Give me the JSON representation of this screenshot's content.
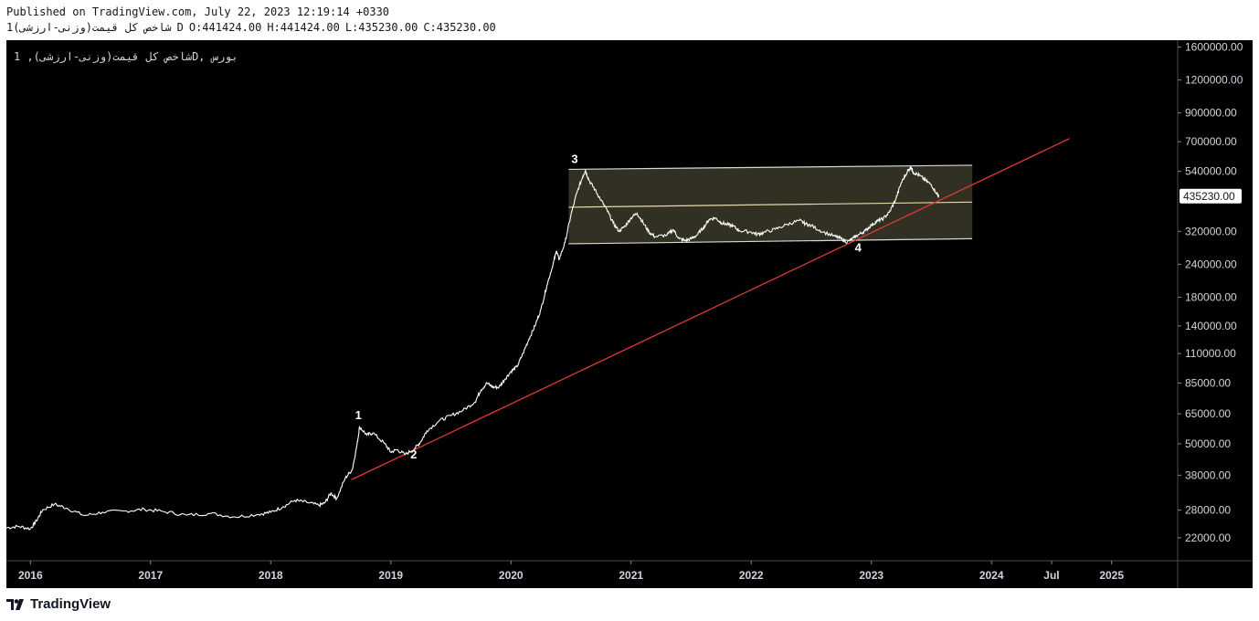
{
  "header": {
    "published": "Published on TradingView.com, July 22, 2023 12:19:14 +0330",
    "symbol": "شاخص کل قیمت(وزنی-ارزشی)",
    "interval": "1D",
    "ohlc": {
      "open": "O:441424.00",
      "high": "H:441424.00",
      "low": "L:435230.00",
      "close": "C:435230.00"
    }
  },
  "legend": {
    "text": "شاخص کل قیمت(وزنی-ارزشی), 1D, بورس"
  },
  "footer": {
    "brand": "TradingView"
  },
  "colors": {
    "background": "#000000",
    "price_line": "#ffffff",
    "trendline": "#e53935",
    "channel_fill": "#3a3829",
    "channel_border": "#d8d8d8",
    "channel_mid": "#e6d7a8",
    "axis_text": "#d1d4dc"
  },
  "chart_data": {
    "type": "line",
    "scale": "log",
    "ylim": [
      18000,
      1700000
    ],
    "xlim": [
      2015.8,
      2025.55
    ],
    "y_ticks": [
      {
        "value": 1600000,
        "label": "1600000.00"
      },
      {
        "value": 1200000,
        "label": "1200000.00"
      },
      {
        "value": 900000,
        "label": "900000.00"
      },
      {
        "value": 700000,
        "label": "700000.00"
      },
      {
        "value": 540000,
        "label": "540000.00"
      },
      {
        "value": 320000,
        "label": "320000.00"
      },
      {
        "value": 240000,
        "label": "240000.00"
      },
      {
        "value": 180000,
        "label": "180000.00"
      },
      {
        "value": 140000,
        "label": "140000.00"
      },
      {
        "value": 110000,
        "label": "110000.00"
      },
      {
        "value": 85000,
        "label": "85000.00"
      },
      {
        "value": 65000,
        "label": "65000.00"
      },
      {
        "value": 50000,
        "label": "50000.00"
      },
      {
        "value": 38000,
        "label": "38000.00"
      },
      {
        "value": 28000,
        "label": "28000.00"
      },
      {
        "value": 22000,
        "label": "22000.00"
      }
    ],
    "x_ticks": [
      {
        "value": 2016.0,
        "label": "2016"
      },
      {
        "value": 2017.0,
        "label": "2017"
      },
      {
        "value": 2018.0,
        "label": "2018"
      },
      {
        "value": 2019.0,
        "label": "2019"
      },
      {
        "value": 2020.0,
        "label": "2020"
      },
      {
        "value": 2021.0,
        "label": "2021"
      },
      {
        "value": 2022.0,
        "label": "2022"
      },
      {
        "value": 2023.0,
        "label": "2023"
      },
      {
        "value": 2024.0,
        "label": "2024"
      },
      {
        "value": 2024.5,
        "label": "Jul"
      },
      {
        "value": 2025.0,
        "label": "2025"
      }
    ],
    "last_price": {
      "value": 435230,
      "label": "435230.00"
    },
    "series": [
      {
        "points": [
          [
            2015.8,
            24000
          ],
          [
            2015.9,
            24300
          ],
          [
            2016.0,
            23800
          ],
          [
            2016.05,
            25500
          ],
          [
            2016.1,
            28000
          ],
          [
            2016.2,
            29500
          ],
          [
            2016.3,
            28500
          ],
          [
            2016.45,
            26700
          ],
          [
            2016.6,
            27500
          ],
          [
            2016.8,
            27800
          ],
          [
            2016.95,
            28200
          ],
          [
            2017.1,
            27700
          ],
          [
            2017.3,
            26800
          ],
          [
            2017.5,
            27200
          ],
          [
            2017.7,
            26400
          ],
          [
            2017.9,
            27000
          ],
          [
            2018.0,
            27500
          ],
          [
            2018.1,
            28800
          ],
          [
            2018.2,
            30500
          ],
          [
            2018.3,
            30000
          ],
          [
            2018.4,
            29200
          ],
          [
            2018.45,
            29800
          ],
          [
            2018.5,
            32500
          ],
          [
            2018.55,
            31000
          ],
          [
            2018.62,
            37000
          ],
          [
            2018.68,
            40000
          ],
          [
            2018.72,
            50000
          ],
          [
            2018.74,
            58000
          ],
          [
            2018.8,
            54000
          ],
          [
            2018.85,
            55000
          ],
          [
            2018.95,
            50000
          ],
          [
            2019.0,
            46500
          ],
          [
            2019.05,
            47500
          ],
          [
            2019.12,
            45500
          ],
          [
            2019.2,
            48000
          ],
          [
            2019.25,
            51000
          ],
          [
            2019.3,
            56000
          ],
          [
            2019.4,
            61000
          ],
          [
            2019.5,
            64000
          ],
          [
            2019.6,
            67000
          ],
          [
            2019.7,
            72000
          ],
          [
            2019.75,
            80000
          ],
          [
            2019.8,
            85000
          ],
          [
            2019.85,
            82000
          ],
          [
            2019.9,
            82000
          ],
          [
            2019.95,
            88000
          ],
          [
            2020.0,
            94000
          ],
          [
            2020.05,
            98000
          ],
          [
            2020.1,
            110000
          ],
          [
            2020.15,
            125000
          ],
          [
            2020.2,
            140000
          ],
          [
            2020.25,
            162000
          ],
          [
            2020.3,
            200000
          ],
          [
            2020.35,
            240000
          ],
          [
            2020.38,
            270000
          ],
          [
            2020.4,
            250000
          ],
          [
            2020.45,
            290000
          ],
          [
            2020.5,
            370000
          ],
          [
            2020.55,
            450000
          ],
          [
            2020.6,
            520000
          ],
          [
            2020.62,
            545000
          ],
          [
            2020.65,
            500000
          ],
          [
            2020.7,
            460000
          ],
          [
            2020.75,
            420000
          ],
          [
            2020.8,
            385000
          ],
          [
            2020.85,
            345000
          ],
          [
            2020.9,
            320000
          ],
          [
            2020.95,
            335000
          ],
          [
            2021.0,
            360000
          ],
          [
            2021.05,
            375000
          ],
          [
            2021.1,
            345000
          ],
          [
            2021.15,
            318000
          ],
          [
            2021.2,
            305000
          ],
          [
            2021.3,
            310000
          ],
          [
            2021.35,
            325000
          ],
          [
            2021.4,
            300000
          ],
          [
            2021.45,
            295000
          ],
          [
            2021.5,
            300000
          ],
          [
            2021.55,
            310000
          ],
          [
            2021.6,
            330000
          ],
          [
            2021.65,
            355000
          ],
          [
            2021.7,
            360000
          ],
          [
            2021.75,
            345000
          ],
          [
            2021.8,
            340000
          ],
          [
            2021.85,
            335000
          ],
          [
            2021.9,
            322000
          ],
          [
            2022.0,
            318000
          ],
          [
            2022.05,
            312000
          ],
          [
            2022.1,
            316000
          ],
          [
            2022.2,
            326000
          ],
          [
            2022.3,
            340000
          ],
          [
            2022.4,
            352000
          ],
          [
            2022.45,
            342000
          ],
          [
            2022.5,
            336000
          ],
          [
            2022.6,
            318000
          ],
          [
            2022.7,
            306000
          ],
          [
            2022.75,
            300000
          ],
          [
            2022.8,
            291000
          ],
          [
            2022.85,
            302000
          ],
          [
            2022.9,
            312000
          ],
          [
            2022.95,
            322000
          ],
          [
            2023.0,
            338000
          ],
          [
            2023.05,
            350000
          ],
          [
            2023.1,
            358000
          ],
          [
            2023.15,
            378000
          ],
          [
            2023.2,
            420000
          ],
          [
            2023.25,
            490000
          ],
          [
            2023.3,
            540000
          ],
          [
            2023.33,
            562000
          ],
          [
            2023.35,
            535000
          ],
          [
            2023.4,
            522000
          ],
          [
            2023.45,
            500000
          ],
          [
            2023.5,
            480000
          ],
          [
            2023.55,
            441424
          ],
          [
            2023.56,
            435230
          ]
        ]
      }
    ],
    "trendline": {
      "start": [
        2018.67,
        36500
      ],
      "end": [
        2024.65,
        720000
      ]
    },
    "channel": {
      "upper_start": [
        2020.48,
        550000
      ],
      "upper_end": [
        2023.84,
        570000
      ],
      "mid_start": [
        2020.48,
        395000
      ],
      "mid_end": [
        2023.84,
        413000
      ],
      "lower_start": [
        2020.48,
        287000
      ],
      "lower_end": [
        2023.84,
        300000
      ]
    },
    "annotations": [
      {
        "label": "1",
        "x": 2018.73,
        "y": 62000
      },
      {
        "label": "2",
        "x": 2019.19,
        "y": 44000
      },
      {
        "label": "3",
        "x": 2020.53,
        "y": 582000
      },
      {
        "label": "4",
        "x": 2022.89,
        "y": 268000
      }
    ]
  }
}
